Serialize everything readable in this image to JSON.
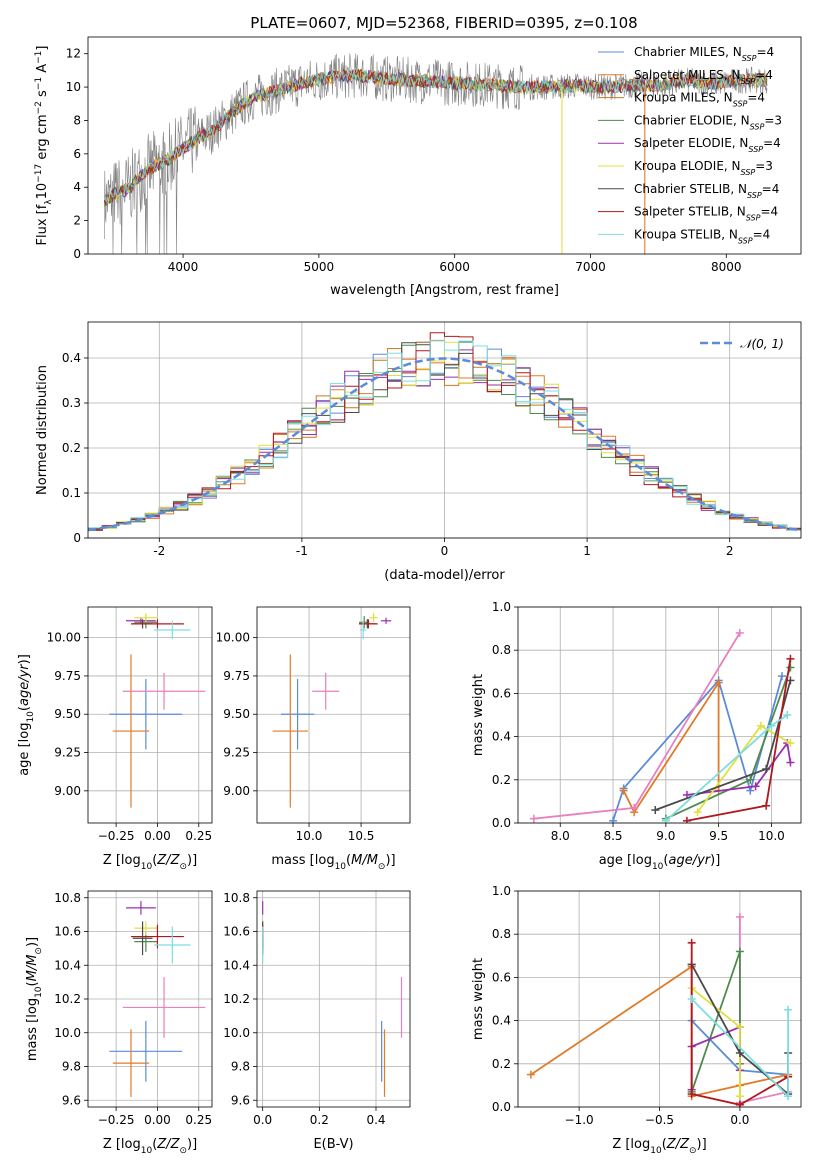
{
  "figure": {
    "title": "PLATE=0607, MJD=52368, FIBERID=0395, z=0.108"
  },
  "models": [
    {
      "name": "Chabrier MILES, N$_{SSP}$=4",
      "label_main": "Chabrier MILES, N",
      "label_sub": "SSP",
      "label_tail": "=4",
      "color": "#5b8bd9"
    },
    {
      "name": "Salpeter MILES",
      "label_main": "Salpeter MILES, N",
      "label_sub": "SSP",
      "label_tail": "=4",
      "color": "#e07b28"
    },
    {
      "name": "Kroupa MILES",
      "label_main": "Kroupa MILES, N",
      "label_sub": "SSP",
      "label_tail": "=4",
      "color": "#c77a1a"
    },
    {
      "name": "Chabrier ELODIE",
      "label_main": "Chabrier ELODIE, N",
      "label_sub": "SSP",
      "label_tail": "=3",
      "color": "#4f8a4f"
    },
    {
      "name": "Salpeter ELODIE",
      "label_main": "Salpeter ELODIE, N",
      "label_sub": "SSP",
      "label_tail": "=4",
      "color": "#9b2fae"
    },
    {
      "name": "Kroupa ELODIE",
      "label_main": "Kroupa ELODIE, N",
      "label_sub": "SSP",
      "label_tail": "=3",
      "color": "#e0e040"
    },
    {
      "name": "Chabrier STELIB",
      "label_main": "Chabrier STELIB, N",
      "label_sub": "SSP",
      "label_tail": "=4",
      "color": "#4a4a4a"
    },
    {
      "name": "Salpeter STELIB",
      "label_main": "Salpeter STELIB, N",
      "label_sub": "SSP",
      "label_tail": "=4",
      "color": "#b0181e"
    },
    {
      "name": "Kroupa STELIB",
      "label_main": "Kroupa STELIB, N",
      "label_sub": "SSP",
      "label_tail": "=4",
      "color": "#7fdde0"
    }
  ],
  "colors": {
    "pink": "#e87fc0",
    "gaussian": "#5b8bd9",
    "grid": "#b0b0b0",
    "spectrum": "#808080"
  },
  "chart_data": [
    {
      "id": "spectrum",
      "type": "line",
      "xlabel": "wavelength [Angstrom, rest frame]",
      "ylabel": "Flux [f$_\\lambda$10$^{-17}$ erg cm$^{-2}$ s$^{-1}$ A$^{-1}$]",
      "ylabel_parts": [
        "Flux [f",
        "λ",
        "10",
        "−17",
        " erg cm",
        "−2",
        " s",
        "−1",
        " A",
        "−1",
        "]"
      ],
      "xlim": [
        3300,
        8550
      ],
      "ylim": [
        0,
        13
      ],
      "xticks": [
        4000,
        5000,
        6000,
        7000,
        8000
      ],
      "yticks": [
        0,
        2,
        4,
        6,
        8,
        10,
        12
      ],
      "grid": false,
      "legend": "upper right",
      "continuum": {
        "x": [
          3420,
          3500,
          3600,
          3700,
          3800,
          3900,
          4000,
          4100,
          4200,
          4300,
          4400,
          4500,
          4700,
          4900,
          5100,
          5300,
          5500,
          5700,
          5900,
          6100,
          6300,
          6500,
          6700,
          6900,
          7100,
          7300,
          7500,
          7700,
          7900,
          8100,
          8300
        ],
        "y": [
          3.1,
          3.6,
          3.9,
          4.8,
          5.3,
          5.7,
          6.3,
          6.9,
          7.3,
          8.0,
          8.7,
          9.3,
          9.8,
          10.3,
          10.6,
          10.7,
          10.5,
          10.4,
          10.3,
          10.2,
          10.1,
          10.0,
          10.0,
          10.1,
          10.0,
          10.1,
          10.1,
          10.4,
          10.2,
          10.4,
          10.4
        ]
      },
      "dropouts": [
        {
          "x": 6790,
          "y": 0
        },
        {
          "x": 7400,
          "y": 0
        }
      ]
    },
    {
      "id": "residuals",
      "type": "bar",
      "xlabel": "(data-model)/error",
      "ylabel": "Normed distribution",
      "xlim": [
        -2.5,
        2.5
      ],
      "ylim": [
        0,
        0.48
      ],
      "xticks": [
        -2,
        -1,
        0,
        1,
        2
      ],
      "yticks": [
        0.0,
        0.1,
        0.2,
        0.3,
        0.4
      ],
      "grid": true,
      "legend": "upper right",
      "gaussian_label": "𝒩(0, 1)",
      "bin_width": 0.1
    },
    {
      "id": "age_vs_Z",
      "type": "scatter",
      "xlabel": "Z [log10(Z/Z⊙)]",
      "xlabel_parts": [
        "Z [log",
        "10",
        "(",
        "Z/Z",
        "⊙",
        ")]"
      ],
      "ylabel": "age [log10(age/yr)]",
      "ylabel_parts": [
        "age  [log",
        "10",
        "(",
        "age/yr",
        ")]"
      ],
      "xlim": [
        -0.42,
        0.33
      ],
      "ylim": [
        8.79,
        10.2
      ],
      "xticks": [
        -0.25,
        0.0,
        0.25
      ],
      "xticklabels": [
        "−0.25",
        "0.00",
        "0.25"
      ],
      "yticks": [
        9.0,
        9.25,
        9.5,
        9.75,
        10.0
      ],
      "yticklabels": [
        "9.00",
        "9.25",
        "9.50",
        "9.75",
        "10.00"
      ],
      "grid": true,
      "points": [
        {
          "model": 0,
          "x": -0.07,
          "y": 9.5,
          "xerr": 0.22,
          "yerr": 0.23
        },
        {
          "model": 1,
          "x": -0.16,
          "y": 9.39,
          "xerr": 0.11,
          "yerr": 0.5
        },
        {
          "model": 9,
          "x": 0.04,
          "y": 9.65,
          "xerr": 0.25,
          "yerr": 0.12
        },
        {
          "model": 3,
          "x": -0.07,
          "y": 10.1,
          "xerr": 0.07,
          "yerr": 0.04
        },
        {
          "model": 4,
          "x": -0.1,
          "y": 10.11,
          "xerr": 0.09,
          "yerr": 0.02
        },
        {
          "model": 5,
          "x": -0.07,
          "y": 10.13,
          "xerr": 0.07,
          "yerr": 0.03
        },
        {
          "model": 6,
          "x": -0.09,
          "y": 10.09,
          "xerr": 0.06,
          "yerr": 0.03
        },
        {
          "model": 7,
          "x": 0.0,
          "y": 10.09,
          "xerr": 0.16,
          "yerr": 0.03
        },
        {
          "model": 8,
          "x": 0.09,
          "y": 10.05,
          "xerr": 0.11,
          "yerr": 0.06
        }
      ]
    },
    {
      "id": "age_vs_mass",
      "type": "scatter",
      "xlabel": "mass [log10(M/M⊙)]",
      "xlabel_parts": [
        "mass [log",
        "10",
        "(",
        "M/M",
        "⊙",
        ")]"
      ],
      "xlim": [
        9.5,
        10.97
      ],
      "ylim": [
        8.79,
        10.2
      ],
      "xticks": [
        10.0,
        10.5
      ],
      "xticklabels": [
        "10.0",
        "10.5"
      ],
      "yticks": [
        9.0,
        9.25,
        9.5,
        9.75,
        10.0
      ],
      "yticklabels": [
        "9.00",
        "9.25",
        "9.50",
        "9.75",
        "10.00"
      ],
      "grid": true,
      "points": [
        {
          "model": 0,
          "x": 9.89,
          "y": 9.5,
          "xerr": 0.16,
          "yerr": 0.23
        },
        {
          "model": 1,
          "x": 9.82,
          "y": 9.39,
          "xerr": 0.17,
          "yerr": 0.5
        },
        {
          "model": 9,
          "x": 10.16,
          "y": 9.65,
          "xerr": 0.13,
          "yerr": 0.12
        },
        {
          "model": 3,
          "x": 10.53,
          "y": 10.1,
          "xerr": 0.05,
          "yerr": 0.04
        },
        {
          "model": 4,
          "x": 10.74,
          "y": 10.11,
          "xerr": 0.05,
          "yerr": 0.02
        },
        {
          "model": 5,
          "x": 10.62,
          "y": 10.13,
          "xerr": 0.04,
          "yerr": 0.03
        },
        {
          "model": 6,
          "x": 10.56,
          "y": 10.09,
          "xerr": 0.08,
          "yerr": 0.03
        },
        {
          "model": 7,
          "x": 10.57,
          "y": 10.09,
          "xerr": 0.09,
          "yerr": 0.03
        },
        {
          "model": 8,
          "x": 10.52,
          "y": 10.05,
          "xerr": 0.03,
          "yerr": 0.06
        }
      ]
    },
    {
      "id": "mass_weight_vs_age",
      "type": "line",
      "xlabel": "age [log10(age/yr)]",
      "xlabel_parts": [
        "age  [log",
        "10",
        "(",
        "age/yr",
        ")]"
      ],
      "ylabel": "mass weight",
      "xlim": [
        7.6,
        10.28
      ],
      "ylim": [
        0,
        1.0
      ],
      "xticks": [
        8.0,
        8.5,
        9.0,
        9.5,
        10.0
      ],
      "xticklabels": [
        "8.0",
        "8.5",
        "9.0",
        "9.5",
        "10.0"
      ],
      "yticks": [
        0.0,
        0.2,
        0.4,
        0.6,
        0.8,
        1.0
      ],
      "yticklabels": [
        "0.0",
        "0.2",
        "0.4",
        "0.6",
        "0.8",
        "1.0"
      ],
      "grid": true,
      "series": [
        {
          "model": 0,
          "x": [
            8.5,
            8.6,
            9.5,
            9.8,
            10.1
          ],
          "y": [
            0.01,
            0.16,
            0.66,
            0.15,
            0.68
          ]
        },
        {
          "model": 1,
          "x": [
            8.6,
            8.7,
            9.5,
            9.5
          ],
          "y": [
            0.15,
            0.05,
            0.65,
            0.15
          ]
        },
        {
          "model": 9,
          "x": [
            7.75,
            8.7,
            9.7
          ],
          "y": [
            0.02,
            0.07,
            0.88
          ]
        },
        {
          "model": 3,
          "x": [
            9.0,
            9.8,
            10.18
          ],
          "y": [
            0.02,
            0.2,
            0.72
          ]
        },
        {
          "model": 4,
          "x": [
            9.2,
            9.85,
            10.15,
            10.18
          ],
          "y": [
            0.13,
            0.17,
            0.37,
            0.28
          ]
        },
        {
          "model": 5,
          "x": [
            9.3,
            9.9,
            10.18
          ],
          "y": [
            0.05,
            0.45,
            0.37
          ]
        },
        {
          "model": 6,
          "x": [
            8.9,
            9.95,
            10.18
          ],
          "y": [
            0.06,
            0.25,
            0.66
          ]
        },
        {
          "model": 7,
          "x": [
            9.2,
            9.95,
            10.18
          ],
          "y": [
            0.01,
            0.08,
            0.76
          ]
        },
        {
          "model": 8,
          "x": [
            9.0,
            10.0,
            10.15
          ],
          "y": [
            0.01,
            0.45,
            0.5
          ]
        }
      ]
    },
    {
      "id": "mass_vs_Z",
      "type": "scatter",
      "xlabel": "Z [log10(Z/Z⊙)]",
      "xlabel_parts": [
        "Z [log",
        "10",
        "(",
        "Z/Z",
        "⊙",
        ")]"
      ],
      "ylabel": "mass [log10(M/M⊙)]",
      "ylabel_parts": [
        "mass [log",
        "10",
        "(",
        "M/M",
        "⊙",
        ")]"
      ],
      "xlim": [
        -0.42,
        0.33
      ],
      "ylim": [
        9.56,
        10.84
      ],
      "xticks": [
        -0.25,
        0.0,
        0.25
      ],
      "xticklabels": [
        "−0.25",
        "0.00",
        "0.25"
      ],
      "yticks": [
        9.6,
        9.8,
        10.0,
        10.2,
        10.4,
        10.6,
        10.8
      ],
      "yticklabels": [
        "9.6",
        "9.8",
        "10.0",
        "10.2",
        "10.4",
        "10.6",
        "10.8"
      ],
      "grid": true,
      "points": [
        {
          "model": 0,
          "x": -0.07,
          "y": 9.89,
          "xerr": 0.22,
          "yerr": 0.18
        },
        {
          "model": 1,
          "x": -0.16,
          "y": 9.82,
          "xerr": 0.11,
          "yerr": 0.2
        },
        {
          "model": 9,
          "x": 0.04,
          "y": 10.15,
          "xerr": 0.25,
          "yerr": 0.18
        },
        {
          "model": 3,
          "x": -0.07,
          "y": 10.54,
          "xerr": 0.07,
          "yerr": 0.06
        },
        {
          "model": 4,
          "x": -0.1,
          "y": 10.74,
          "xerr": 0.09,
          "yerr": 0.04
        },
        {
          "model": 5,
          "x": -0.07,
          "y": 10.62,
          "xerr": 0.07,
          "yerr": 0.04
        },
        {
          "model": 6,
          "x": -0.09,
          "y": 10.56,
          "xerr": 0.06,
          "yerr": 0.1
        },
        {
          "model": 7,
          "x": 0.0,
          "y": 10.57,
          "xerr": 0.16,
          "yerr": 0.07
        },
        {
          "model": 8,
          "x": 0.09,
          "y": 10.52,
          "xerr": 0.11,
          "yerr": 0.11
        }
      ]
    },
    {
      "id": "mass_vs_ebv",
      "type": "scatter",
      "xlabel": "E(B-V)",
      "xlim": [
        -0.02,
        0.52
      ],
      "ylim": [
        9.56,
        10.84
      ],
      "xticks": [
        0.0,
        0.2,
        0.4
      ],
      "xticklabels": [
        "0.0",
        "0.2",
        "0.4"
      ],
      "yticks": [
        9.6,
        9.8,
        10.0,
        10.2,
        10.4,
        10.6,
        10.8
      ],
      "yticklabels": [
        "9.6",
        "9.8",
        "10.0",
        "10.2",
        "10.4",
        "10.6",
        "10.8"
      ],
      "grid": true,
      "points": [
        {
          "model": 0,
          "x": 0.42,
          "y": 9.89,
          "xerr": 0.0,
          "yerr": 0.18
        },
        {
          "model": 1,
          "x": 0.43,
          "y": 9.82,
          "xerr": 0.0,
          "yerr": 0.2
        },
        {
          "model": 9,
          "x": 0.49,
          "y": 10.15,
          "xerr": 0.0,
          "yerr": 0.18
        },
        {
          "model": 3,
          "x": 0.0,
          "y": 10.54,
          "xerr": 0.0,
          "yerr": 0.06
        },
        {
          "model": 4,
          "x": 0.0,
          "y": 10.74,
          "xerr": 0.0,
          "yerr": 0.04
        },
        {
          "model": 5,
          "x": 0.0,
          "y": 10.62,
          "xerr": 0.0,
          "yerr": 0.04
        },
        {
          "model": 6,
          "x": 0.0,
          "y": 10.56,
          "xerr": 0.0,
          "yerr": 0.1
        },
        {
          "model": 7,
          "x": 0.0,
          "y": 10.57,
          "xerr": 0.0,
          "yerr": 0.07
        },
        {
          "model": 8,
          "x": 0.0,
          "y": 10.52,
          "xerr": 0.0,
          "yerr": 0.11
        }
      ]
    },
    {
      "id": "mass_weight_vs_Z",
      "type": "line",
      "xlabel": "Z [log10(Z/Z⊙)]",
      "xlabel_parts": [
        "Z [log",
        "10",
        "(",
        "Z/Z",
        "⊙",
        ")]"
      ],
      "ylabel": "mass weight",
      "xlim": [
        -1.38,
        0.38
      ],
      "ylim": [
        0,
        1.0
      ],
      "xticks": [
        -1.0,
        -0.5,
        0.0
      ],
      "xticklabels": [
        "−1.0",
        "−0.5",
        "0.0"
      ],
      "yticks": [
        0.0,
        0.2,
        0.4,
        0.6,
        0.8,
        1.0
      ],
      "yticklabels": [
        "0.0",
        "0.2",
        "0.4",
        "0.6",
        "0.8",
        "1.0"
      ],
      "grid": true,
      "series": [
        {
          "model": 0,
          "x": [
            -0.3,
            -0.3,
            0.0,
            0.3
          ],
          "y": [
            0.66,
            0.4,
            0.17,
            0.15
          ]
        },
        {
          "model": 1,
          "x": [
            -1.3,
            -0.3,
            -0.3,
            0.0,
            0.3
          ],
          "y": [
            0.15,
            0.65,
            0.05,
            0.1,
            0.15
          ]
        },
        {
          "model": 9,
          "x": [
            0.0,
            0.0,
            0.3
          ],
          "y": [
            0.88,
            0.02,
            0.07
          ]
        },
        {
          "model": 3,
          "x": [
            -0.3,
            0.0,
            0.0
          ],
          "y": [
            0.07,
            0.72,
            0.2
          ]
        },
        {
          "model": 4,
          "x": [
            -0.3,
            -0.3,
            0.0,
            0.0
          ],
          "y": [
            0.08,
            0.28,
            0.37,
            0.17
          ]
        },
        {
          "model": 5,
          "x": [
            -0.3,
            0.0,
            0.0
          ],
          "y": [
            0.55,
            0.37,
            0.05
          ]
        },
        {
          "model": 6,
          "x": [
            -0.3,
            0.0,
            0.3,
            0.3
          ],
          "y": [
            0.66,
            0.25,
            0.06,
            0.25
          ]
        },
        {
          "model": 7,
          "x": [
            -0.3,
            -0.3,
            0.0,
            0.3
          ],
          "y": [
            0.76,
            0.06,
            0.01,
            0.14
          ]
        },
        {
          "model": 8,
          "x": [
            -0.3,
            0.3,
            0.3
          ],
          "y": [
            0.5,
            0.05,
            0.45
          ]
        }
      ]
    }
  ]
}
